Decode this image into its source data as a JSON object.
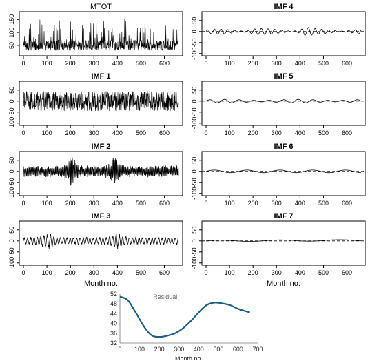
{
  "chart_data": [
    {
      "type": "line",
      "title": "MTOT",
      "xticks": [
        0,
        100,
        200,
        300,
        400,
        500,
        600
      ],
      "yticks": [
        50,
        100,
        150
      ],
      "ylim": [
        10,
        180
      ],
      "series": [
        {
          "n": 660,
          "center": 50,
          "amp": 70,
          "spikes": true
        }
      ],
      "xlabel": ""
    },
    {
      "type": "line",
      "title": "IMF 1",
      "xticks": [
        0,
        100,
        200,
        300,
        400,
        500,
        600
      ],
      "yticks": [
        -100,
        -50,
        0,
        50
      ],
      "ylim": [
        -110,
        90
      ],
      "series": [
        {
          "n": 660,
          "center": 0,
          "amp": 45
        }
      ],
      "xlabel": ""
    },
    {
      "type": "line",
      "title": "IMF 2",
      "xticks": [
        0,
        100,
        200,
        300,
        400,
        500,
        600
      ],
      "yticks": [
        -100,
        -50,
        0,
        50
      ],
      "ylim": [
        -110,
        90
      ],
      "series": [
        {
          "n": 660,
          "center": 0,
          "amp": 25
        }
      ],
      "xlabel": ""
    },
    {
      "type": "line",
      "title": "IMF 3",
      "xticks": [
        0,
        100,
        200,
        300,
        400,
        500,
        600
      ],
      "yticks": [
        -100,
        -50,
        0,
        50
      ],
      "ylim": [
        -110,
        90
      ],
      "series": [
        {
          "n": 660,
          "center": 0,
          "amp": 18
        }
      ],
      "xlabel": "Month no."
    },
    {
      "type": "line",
      "title": "IMF 4",
      "xticks": [
        0,
        100,
        200,
        300,
        400,
        500,
        600
      ],
      "yticks": [
        -100,
        -50,
        0,
        50
      ],
      "ylim": [
        -110,
        90
      ],
      "series": [
        {
          "n": 660,
          "center": 0,
          "amp": 12
        }
      ],
      "xlabel": ""
    },
    {
      "type": "line",
      "title": "IMF 5",
      "xticks": [
        0,
        100,
        200,
        300,
        400,
        500,
        600
      ],
      "yticks": [
        -100,
        -50,
        0,
        50
      ],
      "ylim": [
        -110,
        90
      ],
      "series": [
        {
          "n": 660,
          "center": 0,
          "amp": 8
        }
      ],
      "xlabel": ""
    },
    {
      "type": "line",
      "title": "IMF 6",
      "xticks": [
        0,
        100,
        200,
        300,
        400,
        500,
        600
      ],
      "yticks": [
        -100,
        -50,
        0,
        50
      ],
      "ylim": [
        -110,
        90
      ],
      "series": [
        {
          "n": 660,
          "center": 0,
          "amp": 6
        }
      ],
      "xlabel": ""
    },
    {
      "type": "line",
      "title": "IMF 7",
      "xticks": [
        0,
        100,
        200,
        300,
        400,
        500,
        600
      ],
      "yticks": [
        -100,
        -50,
        0,
        50
      ],
      "ylim": [
        -110,
        90
      ],
      "series": [
        {
          "n": 660,
          "center": 0,
          "amp": 4
        }
      ],
      "xlabel": "Month no."
    },
    {
      "type": "line",
      "title": "Residual",
      "xlabel": "Month no.",
      "xticks": [
        0,
        100,
        200,
        300,
        400,
        500,
        600,
        700
      ],
      "yticks": [
        32,
        36,
        40,
        44,
        48,
        52
      ],
      "xlim": [
        0,
        700
      ],
      "ylim": [
        32,
        52
      ],
      "series": [
        {
          "x": [
            0,
            40,
            80,
            120,
            160,
            200,
            240,
            280,
            320,
            360,
            400,
            440,
            480,
            520,
            560,
            600,
            640,
            660
          ],
          "y": [
            51.0,
            49.5,
            44.5,
            39.0,
            35.2,
            34.5,
            35.0,
            36.0,
            38.0,
            41.0,
            44.5,
            47.5,
            48.5,
            48.2,
            47.5,
            46.0,
            45.0,
            44.5
          ]
        }
      ],
      "color": "#1b5e83"
    }
  ]
}
